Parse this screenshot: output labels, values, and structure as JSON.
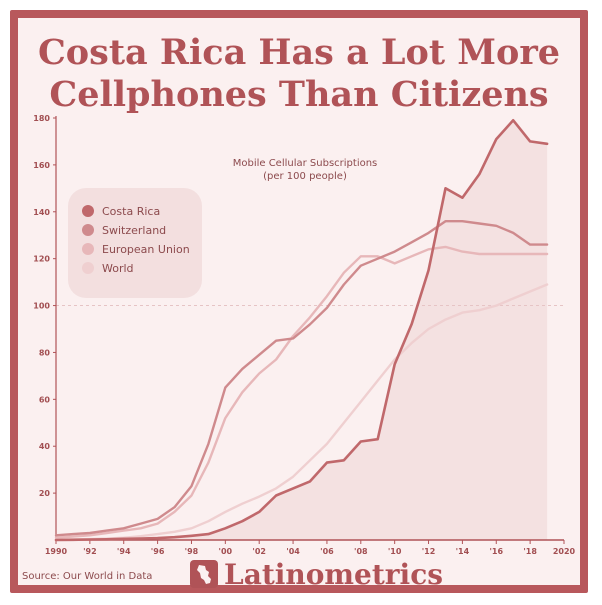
{
  "title_lines": [
    "Costa Rica Has a Lot More",
    "Cellphones Than Citizens"
  ],
  "source": "Source: Our World in Data",
  "brand": "Latinometrics",
  "colors": {
    "costa_rica": "#c0686b",
    "switzerland": "#cf8a8d",
    "european_union": "#e7b7b9",
    "world": "#efcfd0",
    "area": "#f4e1e1",
    "axis": "#b05357"
  },
  "chart_data": {
    "type": "line",
    "annotation": [
      "Mobile Cellular Subscriptions",
      "(per 100 people)"
    ],
    "xlim": [
      1990,
      2020
    ],
    "ylim": [
      0,
      180
    ],
    "x_ticks": [
      1990,
      1992,
      1994,
      1996,
      1998,
      2000,
      2002,
      2004,
      2006,
      2008,
      2010,
      2012,
      2014,
      2016,
      2018,
      2020
    ],
    "x_tick_labels": [
      "1990",
      "'92",
      "'94",
      "'96",
      "'98",
      "'00",
      "'02",
      "'04",
      "'06",
      "'08",
      "'10",
      "'12",
      "'14",
      "'16",
      "'18",
      "2020"
    ],
    "y_ticks": [
      20,
      40,
      60,
      80,
      100,
      120,
      140,
      160,
      180
    ],
    "y_tick_labels": [
      "20",
      "40",
      "60",
      "80",
      "100",
      "120",
      "140",
      "160",
      "180"
    ],
    "reference_line": 100,
    "legend_position": "left",
    "x": [
      1990,
      1991,
      1992,
      1993,
      1994,
      1995,
      1996,
      1997,
      1998,
      1999,
      2000,
      2001,
      2002,
      2003,
      2004,
      2005,
      2006,
      2007,
      2008,
      2009,
      2010,
      2011,
      2012,
      2013,
      2014,
      2015,
      2016,
      2017,
      2018,
      2019
    ],
    "series": [
      {
        "name": "Costa Rica",
        "color_key": "costa_rica",
        "values": [
          0,
          0.1,
          0.2,
          0.3,
          0.5,
          0.6,
          0.8,
          1.2,
          1.8,
          2.5,
          5,
          8,
          12,
          19,
          22,
          25,
          33,
          34,
          42,
          43,
          75,
          92,
          115,
          150,
          146,
          156,
          171,
          179,
          170,
          169
        ]
      },
      {
        "name": "Switzerland",
        "color_key": "switzerland",
        "values": [
          2,
          2.5,
          3,
          4,
          5,
          7,
          9,
          14,
          23,
          41,
          65,
          73,
          79,
          85,
          86,
          92,
          99,
          109,
          117,
          120,
          123,
          127,
          131,
          136,
          136,
          135,
          134,
          131,
          126,
          126
        ]
      },
      {
        "name": "European Union",
        "color_key": "european_union",
        "values": [
          1,
          1.5,
          2,
          3,
          4,
          5,
          7,
          12,
          19,
          33,
          52,
          63,
          71,
          77,
          87,
          95,
          104,
          114,
          121,
          121,
          118,
          121,
          124,
          125,
          123,
          122,
          122,
          122,
          122,
          122
        ]
      },
      {
        "name": "World",
        "color_key": "world",
        "values": [
          0.2,
          0.3,
          0.4,
          0.6,
          1,
          1.6,
          2.5,
          3.5,
          5,
          8,
          12,
          15.5,
          18.5,
          22,
          27,
          34,
          41,
          50,
          59,
          68,
          77,
          84,
          90,
          94,
          97,
          98,
          100,
          103,
          106,
          109
        ]
      }
    ]
  }
}
